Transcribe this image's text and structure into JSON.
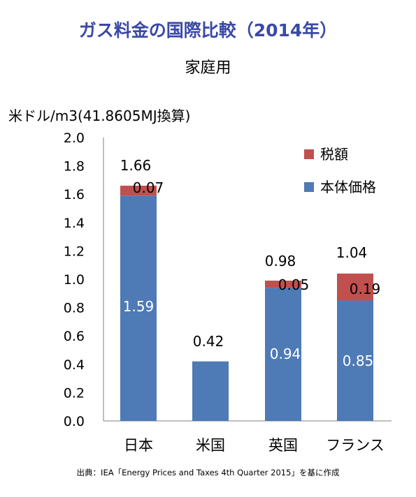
{
  "title": "ガス料金の国際比較（2014年）",
  "subtitle": "家庭用",
  "source": "出典：IEA「Energy Prices and Taxes 4th Quarter 2015」を基に作成",
  "chart_data": {
    "type": "bar",
    "stacked": true,
    "ylabel": "米ドル/m3(41.8605MJ換算)",
    "ylim": [
      0,
      2.0
    ],
    "yticks": [
      "0.0",
      "0.2",
      "0.4",
      "0.6",
      "0.8",
      "1.0",
      "1.2",
      "1.4",
      "1.6",
      "1.8",
      "2.0"
    ],
    "categories": [
      "日本",
      "米国",
      "英国",
      "フランス"
    ],
    "series": [
      {
        "name": "本体価格",
        "color": "#4e7ab5",
        "values": [
          1.59,
          0.42,
          0.94,
          0.85
        ],
        "labels": [
          "1.59",
          "",
          "0.94",
          "0.85"
        ]
      },
      {
        "name": "税額",
        "color": "#c0504d",
        "values": [
          0.07,
          0,
          0.05,
          0.19
        ],
        "labels": [
          "0.07",
          "",
          "0.05",
          "0.19"
        ]
      }
    ],
    "totals": [
      "1.66",
      "0.42",
      "0.98",
      "1.04"
    ],
    "legend": "top-right",
    "legend_order": [
      "税額",
      "本体価格"
    ],
    "grid": false
  }
}
